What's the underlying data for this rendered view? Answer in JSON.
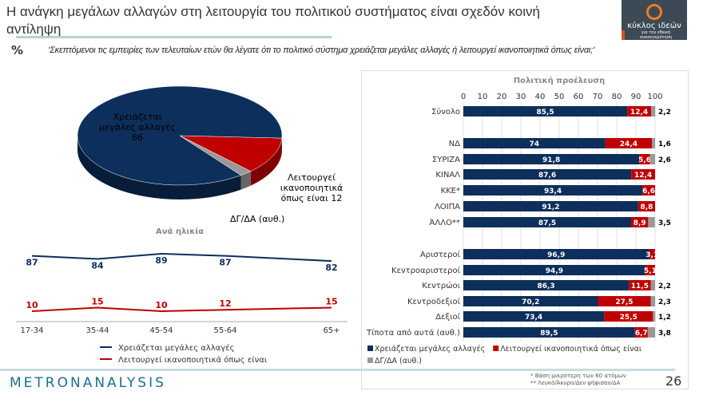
{
  "title": "Η ανάγκη μεγάλων αλλαγών στη λειτουργία του πολιτικού συστήματος είναι σχεδόν κοινή αντίληψη",
  "logo": {
    "name": "κύκλος ιδεών",
    "tagline": "για την εθνική ανασυγκρότηση"
  },
  "percent_symbol": "%",
  "question": "‘Σκεπτόμενοι τις εμπειρίες των τελευταίων ετών θα λέγατε ότι το πολιτικό σύστημα χρειάζεται μεγάλες αλλαγές ή λειτουργεί ικανοποιητικά όπως είναι;’",
  "colors": {
    "navy": "#0d2f5c",
    "red": "#c00000",
    "gray": "#999999"
  },
  "chart_data": [
    {
      "type": "pie",
      "slices": [
        {
          "label": "Χρειάζεται μεγάλες αλλαγές 86",
          "value": 86,
          "color": "#0d2f5c"
        },
        {
          "label": "Λειτουργεί ικανοποιητικά όπως είναι 12",
          "value": 12,
          "color": "#c00000"
        },
        {
          "label": "ΔΓ/ΔΑ (αυθ.)",
          "value": 2,
          "color": "#999999"
        }
      ]
    },
    {
      "type": "line",
      "title": "Ανά ηλικία",
      "categories": [
        "17-34",
        "35-44",
        "45-54",
        "55-64",
        "65+"
      ],
      "series": [
        {
          "name": "Χρειάζεται μεγάλες αλλαγές",
          "values": [
            87,
            84,
            89,
            87,
            82
          ],
          "color": "#0d2f5c"
        },
        {
          "name": "Λειτουργεί ικανοποιητικά όπως είναι",
          "values": [
            10,
            15,
            10,
            12,
            15
          ],
          "color": "#c00000"
        }
      ]
    },
    {
      "type": "bar",
      "stacked": true,
      "orientation": "horizontal",
      "title": "Πολιτική προέλευση",
      "xlim": [
        0,
        100
      ],
      "ticks": [
        0,
        10,
        20,
        30,
        40,
        50,
        60,
        70,
        80,
        90,
        100
      ],
      "categories": [
        "Σύνολο",
        "",
        "ΝΔ",
        "ΣΥΡΙΖΑ",
        "ΚΙΝΑΛ",
        "ΚΚΕ*",
        "ΛΟΙΠΑ",
        "ΆΛΛΟ**",
        "",
        "Αριστεροί",
        "Κεντροαριστεροί",
        "Κεντρώοι",
        "Κεντροδεξιοί",
        "Δεξιοί",
        "Τίποτα από αυτά (αυθ.)"
      ],
      "series": [
        {
          "name": "Χρειάζεται μεγάλες αλλαγές",
          "color": "#0d2f5c",
          "values": [
            85.5,
            null,
            74,
            91.8,
            87.6,
            93.4,
            91.2,
            87.5,
            null,
            96.9,
            94.9,
            86.3,
            70.2,
            73.4,
            89.5
          ]
        },
        {
          "name": "Λειτουργεί ικανοποιητικά όπως είναι",
          "color": "#c00000",
          "values": [
            12.4,
            null,
            24.4,
            5.6,
            12.4,
            6.6,
            8.8,
            8.9,
            null,
            3.1,
            5.1,
            11.5,
            27.5,
            25.5,
            6.7
          ]
        },
        {
          "name": "ΔΓ/ΔΑ (αυθ.)",
          "color": "#999999",
          "values": [
            2.2,
            null,
            1.6,
            2.6,
            null,
            null,
            null,
            3.5,
            null,
            null,
            null,
            2.2,
            2.3,
            1.2,
            3.8
          ]
        }
      ],
      "legend": "bottom"
    }
  ],
  "footer": {
    "brand": "METRONANALYSIS",
    "notes": [
      "*  Βάση μικρότερη των 60 ατόμων",
      "** Λευκό/Άκυρο/Δεν ψήφισαν/ΔΑ"
    ],
    "page": "26"
  }
}
